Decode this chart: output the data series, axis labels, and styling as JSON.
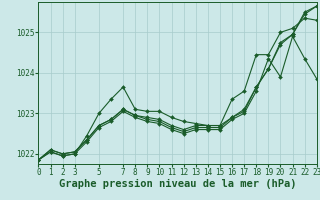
{
  "background_color": "#cce8e8",
  "grid_color": "#a8cccc",
  "line_color": "#1a5c2a",
  "marker_color": "#1a5c2a",
  "xlabel": "Graphe pression niveau de la mer (hPa)",
  "xlabel_fontsize": 7.5,
  "ylim": [
    1021.75,
    1025.75
  ],
  "xlim": [
    0,
    23
  ],
  "yticks": [
    1022,
    1023,
    1024,
    1025
  ],
  "xticks": [
    0,
    1,
    2,
    3,
    5,
    7,
    8,
    9,
    10,
    11,
    12,
    13,
    14,
    15,
    16,
    17,
    18,
    19,
    20,
    21,
    22,
    23
  ],
  "series": [
    [
      1021.85,
      1022.1,
      1022.0,
      1022.05,
      1022.35,
      1022.7,
      1022.85,
      1023.1,
      1022.95,
      1022.9,
      1022.85,
      1022.7,
      1022.6,
      1022.7,
      1022.7,
      1022.7,
      1022.9,
      1023.1,
      1023.65,
      1024.1,
      1024.75,
      1024.95,
      1025.5,
      1025.65
    ],
    [
      1021.85,
      1022.1,
      1022.0,
      1022.05,
      1022.35,
      1022.7,
      1022.85,
      1023.1,
      1022.95,
      1022.85,
      1022.8,
      1022.65,
      1022.55,
      1022.65,
      1022.65,
      1022.65,
      1022.9,
      1023.05,
      1023.65,
      1024.1,
      1024.7,
      1024.95,
      1025.45,
      1025.65
    ],
    [
      1021.85,
      1022.05,
      1021.95,
      1022.0,
      1022.3,
      1022.65,
      1022.8,
      1023.05,
      1022.9,
      1022.8,
      1022.75,
      1022.6,
      1022.5,
      1022.6,
      1022.6,
      1022.6,
      1022.85,
      1023.0,
      1023.55,
      1024.35,
      1023.9,
      1024.9,
      1024.35,
      1023.85
    ],
    [
      1021.85,
      1022.05,
      1021.95,
      1022.0,
      1022.45,
      1023.0,
      1023.35,
      1023.65,
      1023.1,
      1023.05,
      1023.05,
      1022.9,
      1022.8,
      1022.75,
      1022.7,
      1022.7,
      1023.35,
      1023.55,
      1024.45,
      1024.45,
      1025.0,
      1025.1,
      1025.35,
      1025.3
    ]
  ]
}
